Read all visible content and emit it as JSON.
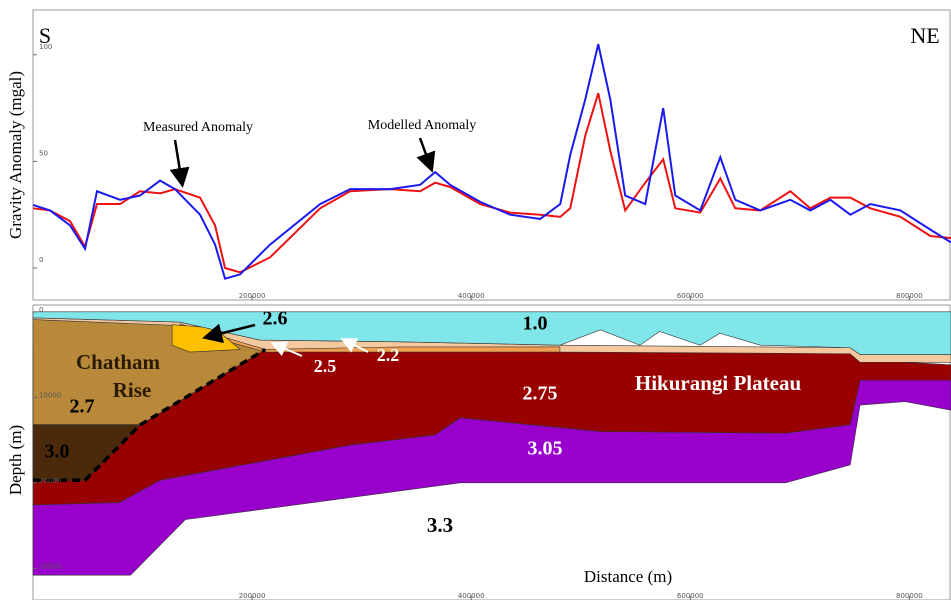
{
  "chart_data": [
    {
      "type": "line",
      "y_label": "Gravity Anomaly (mgal)",
      "annotations": [
        "S",
        "NE",
        "Measured  Anomaly",
        "Modelled Anomaly"
      ],
      "x": [
        0,
        15500,
        33800,
        47500,
        58400,
        79500,
        97700,
        116000,
        129700,
        152500,
        166200,
        175300,
        189000,
        216400,
        262100,
        289500,
        326000,
        353400,
        367100,
        380800,
        408200,
        435600,
        463000,
        481300,
        490400,
        504100,
        516000,
        527000,
        540600,
        558900,
        575300,
        586300,
        609100,
        627400,
        641100,
        663900,
        691300,
        709600,
        727900,
        746100,
        764400,
        791800,
        819200,
        838000
      ],
      "series": [
        {
          "name": "Measured  Anomaly",
          "color": "#ee1111",
          "values": [
            28,
            27,
            22,
            10,
            30,
            30,
            36,
            35,
            37,
            33,
            20,
            0,
            -2,
            5,
            28,
            36,
            37,
            36,
            40,
            38,
            30,
            26,
            25,
            24,
            28,
            62,
            82,
            55,
            27,
            40,
            51,
            28,
            26,
            42,
            28,
            27,
            36,
            28,
            33,
            33,
            28,
            24,
            15,
            14
          ]
        },
        {
          "name": "Modelled Anomaly",
          "color": "#1a1aee",
          "values": [
            29.6,
            27,
            20,
            9,
            36,
            32,
            34,
            41,
            37,
            25,
            11,
            -5,
            -3,
            11,
            30,
            37,
            37,
            39,
            45,
            39,
            31,
            25,
            23,
            30,
            53,
            79,
            105,
            79,
            34,
            30,
            75,
            34,
            27,
            52,
            32,
            27,
            32,
            27,
            32,
            25,
            30,
            27,
            18,
            12
          ]
        }
      ],
      "xlim": [
        0,
        838000
      ],
      "ylim": [
        -15,
        121
      ],
      "xticks": [
        200000,
        400000,
        600000,
        800000
      ],
      "yticks": [
        0,
        50,
        100
      ]
    },
    {
      "type": "section",
      "y_label": "Depth (m)",
      "x_label": "Distance (m)",
      "annotations": [
        "Chatham",
        "Rise",
        "Hikurangi Plateau",
        "3.3"
      ],
      "xlim": [
        0,
        838000
      ],
      "ylim": [
        33700,
        -800
      ],
      "xticks": [
        200000,
        400000,
        600000,
        800000
      ],
      "yticks": [
        0,
        10000,
        20000,
        30000
      ],
      "layers": [
        {
          "label": "2.75",
          "color": "#990000",
          "x": [
            0,
            207000,
            481000,
            746000,
            755000,
            838000,
            838000,
            755000,
            746000,
            687000,
            518000,
            390000,
            367000,
            289000,
            116000,
            79000,
            0
          ],
          "depth": [
            3900,
            3900,
            3900,
            4400,
            5600,
            6200,
            8000,
            8000,
            13200,
            14200,
            14000,
            12400,
            14400,
            15600,
            19700,
            22300,
            22600
          ]
        },
        {
          "label": "3.05",
          "color": "#9900cc",
          "x": [
            0,
            79000,
            116000,
            289000,
            367000,
            390000,
            518000,
            687000,
            746000,
            755000,
            838000,
            838000,
            796000,
            755000,
            746000,
            687000,
            390000,
            139000,
            89000,
            0
          ],
          "depth": [
            22600,
            22300,
            19700,
            15600,
            14400,
            12400,
            14000,
            14200,
            13200,
            8000,
            8000,
            11500,
            10500,
            10900,
            17900,
            20000,
            20000,
            24300,
            30800,
            30800
          ]
        },
        {
          "label": "2.7",
          "color": "#b8893a",
          "x": [
            0,
            134000,
            207000,
            212000,
            98000,
            0
          ],
          "depth": [
            700,
            1200,
            4400,
            4400,
            13200,
            13200
          ]
        },
        {
          "label": "3.0",
          "color": "#4a2a0a",
          "x": [
            0,
            98000,
            47500,
            0
          ],
          "depth": [
            13200,
            13200,
            19700,
            19700
          ]
        },
        {
          "label": "2.2",
          "color": "#f5c9a0",
          "x": [
            0,
            134000,
            207000,
            335000,
            481000,
            746000,
            755000,
            838000,
            838000,
            755000,
            746000,
            481000,
            335000,
            212000,
            134000,
            0
          ],
          "depth": [
            700,
            1200,
            3300,
            3500,
            3900,
            4200,
            5000,
            5000,
            5900,
            5900,
            4900,
            4700,
            4200,
            4400,
            1600,
            900
          ]
        },
        {
          "label": "2.5",
          "color": "#f0a050",
          "x": [
            134000,
            212000,
            335000,
            481000,
            481000,
            335000,
            212000,
            134000
          ],
          "depth": [
            1400,
            4400,
            4100,
            4100,
            4700,
            4700,
            4700,
            1900
          ]
        },
        {
          "label": "2.6",
          "color": "#ffc000",
          "x": [
            127000,
            166000,
            189000,
            143000,
            127000
          ],
          "depth": [
            1500,
            1900,
            4400,
            4700,
            3900
          ]
        },
        {
          "label": "1.0",
          "color": "#80e6ea",
          "x": [
            0,
            838000,
            838000,
            755000,
            746000,
            664000,
            627000,
            609000,
            572000,
            554000,
            518000,
            481000,
            335000,
            207000,
            134000,
            0
          ],
          "depth": [
            0,
            0,
            5000,
            5000,
            4200,
            3900,
            2500,
            3900,
            2300,
            3900,
            2100,
            3900,
            3500,
            3300,
            1200,
            700
          ]
        }
      ],
      "dashed_boundary": {
        "x": [
          0,
          47500,
          98000,
          212000
        ],
        "depth": [
          19700,
          19700,
          13200,
          4400
        ]
      }
    }
  ]
}
